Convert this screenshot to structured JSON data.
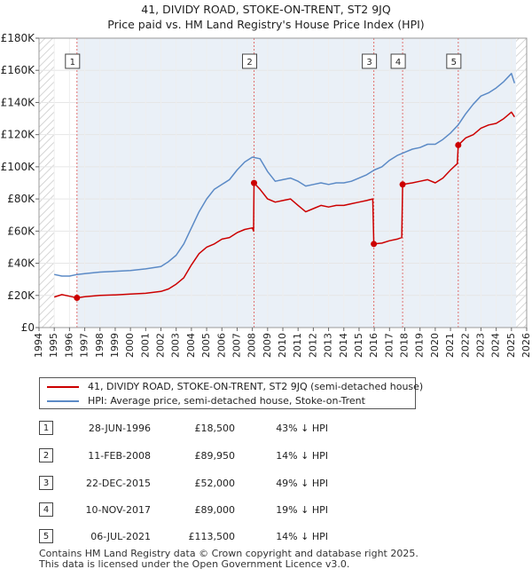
{
  "title": {
    "line1": "41, DIVIDY ROAD, STOKE-ON-TRENT, ST2 9JQ",
    "line2": "Price paid vs. HM Land Registry's House Price Index (HPI)"
  },
  "colors": {
    "property": "#cc0000",
    "hpi": "#5b8ac6",
    "shade": "#e8eef6",
    "hatch": "#c8c8c8",
    "marker_line": "#e07070"
  },
  "legend": {
    "property_label": "41, DIVIDY ROAD, STOKE-ON-TRENT, ST2 9JQ (semi-detached house)",
    "hpi_label": "HPI: Average price, semi-detached house, Stoke-on-Trent"
  },
  "sales": [
    {
      "num": "1",
      "date": "28-JUN-1996",
      "price": "£18,500",
      "hpi": "43% ↓ HPI"
    },
    {
      "num": "2",
      "date": "11-FEB-2008",
      "price": "£89,950",
      "hpi": "14% ↓ HPI"
    },
    {
      "num": "3",
      "date": "22-DEC-2015",
      "price": "£52,000",
      "hpi": "49% ↓ HPI"
    },
    {
      "num": "4",
      "date": "10-NOV-2017",
      "price": "£89,000",
      "hpi": "19% ↓ HPI"
    },
    {
      "num": "5",
      "date": "06-JUL-2021",
      "price": "£113,500",
      "hpi": "14% ↓ HPI"
    }
  ],
  "footer": {
    "line1": "Contains HM Land Registry data © Crown copyright and database right 2025.",
    "line2": "This data is licensed under the Open Government Licence v3.0."
  },
  "chart_data": {
    "type": "line",
    "xlim": [
      1994,
      2026
    ],
    "ylim": [
      0,
      180000
    ],
    "y_ticks": [
      0,
      20000,
      40000,
      60000,
      80000,
      100000,
      120000,
      140000,
      160000,
      180000
    ],
    "y_tick_labels": [
      "£0",
      "£20K",
      "£40K",
      "£60K",
      "£80K",
      "£100K",
      "£120K",
      "£140K",
      "£160K",
      "£180K"
    ],
    "x_ticks": [
      1994,
      1995,
      1996,
      1997,
      1998,
      1999,
      2000,
      2001,
      2002,
      2003,
      2004,
      2005,
      2006,
      2007,
      2008,
      2009,
      2010,
      2011,
      2012,
      2013,
      2014,
      2015,
      2016,
      2017,
      2018,
      2019,
      2020,
      2021,
      2022,
      2023,
      2024,
      2025,
      2026
    ],
    "x_tick_labels": [
      "1994",
      "1995",
      "1996",
      "1997",
      "1998",
      "1999",
      "2000",
      "2001",
      "2002",
      "2003",
      "2004",
      "2005",
      "2006",
      "2007",
      "2008",
      "2009",
      "2010",
      "2011",
      "2012",
      "2013",
      "2014",
      "2015",
      "2016",
      "2017",
      "2018",
      "2019",
      "2020",
      "2021",
      "2022",
      "2023",
      "2024",
      "2025",
      "2026"
    ],
    "shaded_periods": [
      [
        1994,
        1995
      ],
      [
        2025.3,
        2026
      ]
    ],
    "sale_markers": [
      {
        "label": "1",
        "x": 1996.49,
        "y": 18500
      },
      {
        "label": "2",
        "x": 2008.11,
        "y": 89950
      },
      {
        "label": "3",
        "x": 2015.97,
        "y": 52000
      },
      {
        "label": "4",
        "x": 2017.86,
        "y": 89000
      },
      {
        "label": "5",
        "x": 2021.51,
        "y": 113500
      }
    ],
    "series": [
      {
        "name": "41, DIVIDY ROAD, STOKE-ON-TRENT, ST2 9JQ (semi-detached house)",
        "points": [
          [
            1995.0,
            19000
          ],
          [
            1995.5,
            20500
          ],
          [
            1996.0,
            19500
          ],
          [
            1996.49,
            18500
          ],
          [
            1997.0,
            19200
          ],
          [
            1998.0,
            20000
          ],
          [
            1999.0,
            20300
          ],
          [
            2000.0,
            20800
          ],
          [
            2001.0,
            21300
          ],
          [
            2002.0,
            22500
          ],
          [
            2002.5,
            24000
          ],
          [
            2003.0,
            27000
          ],
          [
            2003.5,
            31000
          ],
          [
            2004.0,
            39000
          ],
          [
            2004.5,
            46000
          ],
          [
            2005.0,
            50000
          ],
          [
            2005.5,
            52000
          ],
          [
            2006.0,
            55000
          ],
          [
            2006.5,
            56000
          ],
          [
            2007.0,
            59000
          ],
          [
            2007.5,
            61000
          ],
          [
            2008.0,
            62000
          ],
          [
            2008.08,
            60000
          ],
          [
            2008.11,
            89950
          ],
          [
            2008.5,
            86000
          ],
          [
            2009.0,
            80000
          ],
          [
            2009.5,
            78000
          ],
          [
            2010.0,
            79000
          ],
          [
            2010.5,
            80000
          ],
          [
            2011.0,
            76000
          ],
          [
            2011.5,
            72000
          ],
          [
            2012.0,
            74000
          ],
          [
            2012.5,
            76000
          ],
          [
            2013.0,
            75000
          ],
          [
            2013.5,
            76000
          ],
          [
            2014.0,
            76000
          ],
          [
            2014.5,
            77000
          ],
          [
            2015.0,
            78000
          ],
          [
            2015.5,
            79000
          ],
          [
            2015.9,
            80000
          ],
          [
            2015.97,
            52000
          ],
          [
            2016.5,
            52500
          ],
          [
            2017.0,
            54000
          ],
          [
            2017.5,
            55000
          ],
          [
            2017.8,
            56000
          ],
          [
            2017.86,
            89000
          ],
          [
            2018.5,
            90000
          ],
          [
            2019.0,
            91000
          ],
          [
            2019.5,
            92000
          ],
          [
            2020.0,
            90000
          ],
          [
            2020.5,
            93000
          ],
          [
            2021.0,
            98000
          ],
          [
            2021.45,
            102000
          ],
          [
            2021.51,
            113500
          ],
          [
            2022.0,
            118000
          ],
          [
            2022.5,
            120000
          ],
          [
            2023.0,
            124000
          ],
          [
            2023.5,
            126000
          ],
          [
            2024.0,
            127000
          ],
          [
            2024.5,
            130000
          ],
          [
            2025.0,
            134000
          ],
          [
            2025.2,
            131000
          ]
        ]
      },
      {
        "name": "HPI: Average price, semi-detached house, Stoke-on-Trent",
        "points": [
          [
            1995.0,
            33000
          ],
          [
            1995.5,
            32000
          ],
          [
            1996.0,
            32000
          ],
          [
            1996.5,
            33000
          ],
          [
            1997.0,
            33500
          ],
          [
            1998.0,
            34500
          ],
          [
            1999.0,
            35000
          ],
          [
            2000.0,
            35500
          ],
          [
            2001.0,
            36500
          ],
          [
            2002.0,
            38000
          ],
          [
            2002.5,
            41000
          ],
          [
            2003.0,
            45000
          ],
          [
            2003.5,
            52000
          ],
          [
            2004.0,
            62000
          ],
          [
            2004.5,
            72000
          ],
          [
            2005.0,
            80000
          ],
          [
            2005.5,
            86000
          ],
          [
            2006.0,
            89000
          ],
          [
            2006.5,
            92000
          ],
          [
            2007.0,
            98000
          ],
          [
            2007.5,
            103000
          ],
          [
            2008.0,
            106000
          ],
          [
            2008.5,
            105000
          ],
          [
            2009.0,
            97000
          ],
          [
            2009.5,
            91000
          ],
          [
            2010.0,
            92000
          ],
          [
            2010.5,
            93000
          ],
          [
            2011.0,
            91000
          ],
          [
            2011.5,
            88000
          ],
          [
            2012.0,
            89000
          ],
          [
            2012.5,
            90000
          ],
          [
            2013.0,
            89000
          ],
          [
            2013.5,
            90000
          ],
          [
            2014.0,
            90000
          ],
          [
            2014.5,
            91000
          ],
          [
            2015.0,
            93000
          ],
          [
            2015.5,
            95000
          ],
          [
            2016.0,
            98000
          ],
          [
            2016.5,
            100000
          ],
          [
            2017.0,
            104000
          ],
          [
            2017.5,
            107000
          ],
          [
            2018.0,
            109000
          ],
          [
            2018.5,
            111000
          ],
          [
            2019.0,
            112000
          ],
          [
            2019.5,
            114000
          ],
          [
            2020.0,
            114000
          ],
          [
            2020.5,
            117000
          ],
          [
            2021.0,
            121000
          ],
          [
            2021.5,
            126000
          ],
          [
            2022.0,
            133000
          ],
          [
            2022.5,
            139000
          ],
          [
            2023.0,
            144000
          ],
          [
            2023.5,
            146000
          ],
          [
            2024.0,
            149000
          ],
          [
            2024.5,
            153000
          ],
          [
            2025.0,
            158000
          ],
          [
            2025.2,
            152000
          ]
        ]
      }
    ]
  }
}
